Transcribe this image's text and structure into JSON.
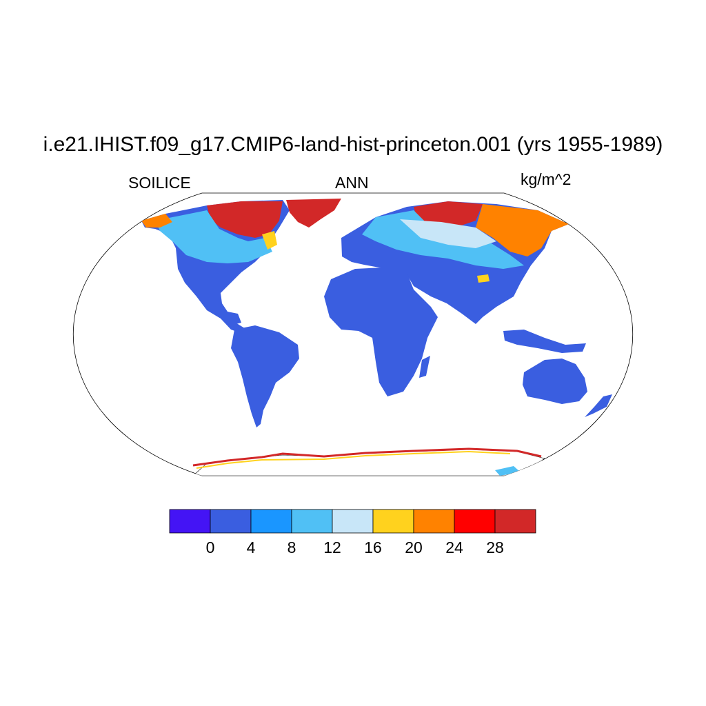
{
  "title": "i.e21.IHIST.f09_g17.CMIP6-land-hist-princeton.001 (yrs 1955-1989)",
  "left_label": "SOILICE",
  "center_label": "ANN",
  "right_label": "kg/m^2",
  "colorbar": {
    "colors": [
      "#4414f5",
      "#3a5ee0",
      "#1a96ff",
      "#50c0f5",
      "#c8e6f8",
      "#ffd21e",
      "#ff8200",
      "#ff0000",
      "#d22828"
    ],
    "ticks": [
      "0",
      "4",
      "8",
      "12",
      "16",
      "20",
      "24",
      "28"
    ]
  },
  "legend": {
    "units": "kg/m^2"
  }
}
